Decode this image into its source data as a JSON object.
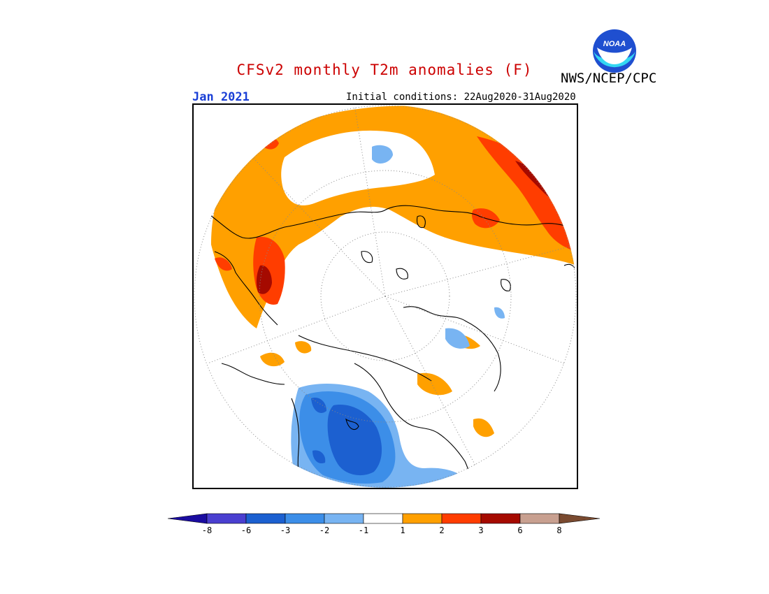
{
  "header": {
    "title": "CFSv2 monthly T2m anomalies (F)",
    "agency": "NWS/NCEP/CPC",
    "logo_text": "NOAA",
    "month": "Jan 2021",
    "initial_conditions": "Initial conditions: 22Aug2020-31Aug2020"
  },
  "colors": {
    "title": "#cc0000",
    "month": "#1a3fd6",
    "ocean": "#ffffff",
    "coast": "#000000",
    "grid": "#888888"
  },
  "legend": {
    "tick_labels": [
      "-8",
      "-6",
      "-3",
      "-2",
      "-1",
      "1",
      "2",
      "3",
      "6",
      "8"
    ],
    "bins": [
      {
        "range": "< -8",
        "color": "#1a0ca0"
      },
      {
        "range": "-8 to -6",
        "color": "#4a3fd0"
      },
      {
        "range": "-6 to -3",
        "color": "#1c60d0"
      },
      {
        "range": "-3 to -2",
        "color": "#3c8ee8"
      },
      {
        "range": "-2 to -1",
        "color": "#78b4f2"
      },
      {
        "range": "-1 to 1",
        "color": "#ffffff"
      },
      {
        "range": "1 to 2",
        "color": "#ffa000"
      },
      {
        "range": "2 to 3",
        "color": "#ff3d00"
      },
      {
        "range": "3 to 6",
        "color": "#a50a00"
      },
      {
        "range": "6 to 8",
        "color": "#c8a090"
      },
      {
        "range": "> 8",
        "color": "#7a4a30"
      }
    ]
  }
}
